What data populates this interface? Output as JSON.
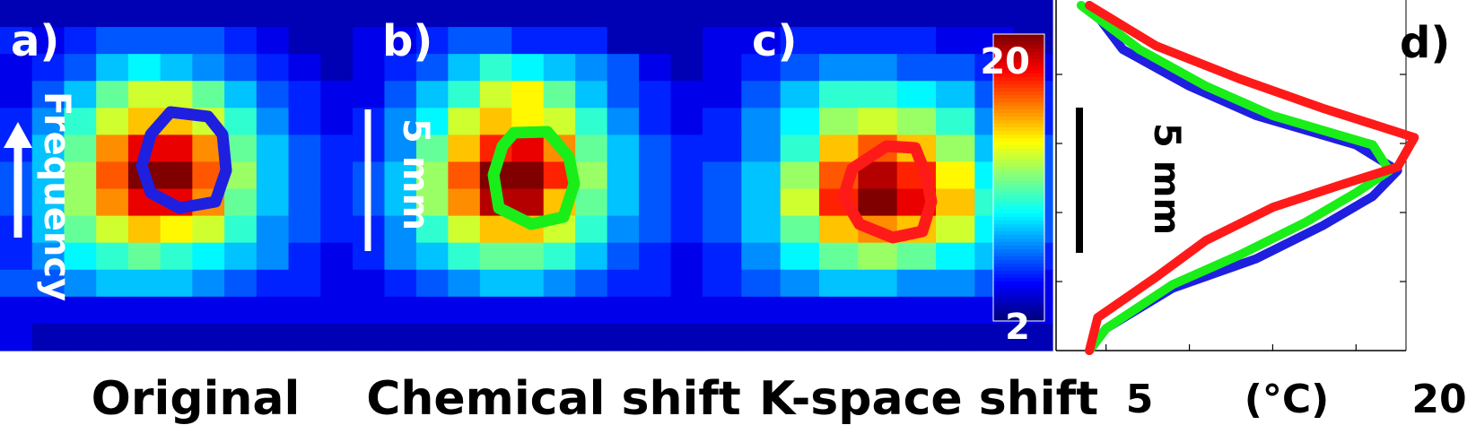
{
  "figure": {
    "panel_labels": [
      "a)",
      "b)",
      "c)",
      "d)"
    ],
    "panel_titles": [
      "Original",
      "Chemical shift",
      "K-space shift"
    ],
    "frequency_label": "Frequency",
    "scale_bar_label": "5 mm",
    "colors": {
      "original_outline": "#1f1fe0",
      "chemical_outline": "#19ee19",
      "kspace_outline": "#ff1a1a"
    }
  },
  "chart_data": [
    {
      "type": "heatmap",
      "panel": "a)",
      "title": "Original",
      "colormap": "jet",
      "clim": [
        2,
        21
      ],
      "values": [
        [
          3,
          3,
          3,
          3,
          3,
          3,
          3,
          3,
          3,
          3,
          3
        ],
        [
          5,
          4,
          5,
          6,
          6,
          6,
          6,
          5,
          4,
          3,
          3
        ],
        [
          4,
          5,
          6,
          8,
          9,
          8,
          7,
          6,
          5,
          4,
          3
        ],
        [
          4,
          6,
          8,
          11,
          13,
          13,
          11,
          8,
          6,
          5,
          4
        ],
        [
          5,
          7,
          10,
          13,
          15,
          15,
          13,
          10,
          7,
          5,
          4
        ],
        [
          5,
          8,
          11,
          16,
          19,
          19,
          16,
          11,
          8,
          6,
          5
        ],
        [
          6,
          8,
          12,
          17,
          21,
          21,
          17,
          12,
          8,
          6,
          5
        ],
        [
          6,
          8,
          12,
          16,
          19,
          19,
          16,
          11,
          8,
          6,
          5
        ],
        [
          5,
          8,
          11,
          13,
          15,
          14,
          13,
          10,
          7,
          6,
          5
        ],
        [
          5,
          7,
          9,
          10,
          11,
          10,
          9,
          8,
          7,
          5,
          4
        ],
        [
          6,
          6,
          7,
          8,
          8,
          8,
          7,
          6,
          5,
          5,
          4
        ],
        [
          4,
          4,
          4,
          4,
          4,
          4,
          4,
          4,
          4,
          4,
          4
        ],
        [
          4,
          3,
          3,
          3,
          3,
          3,
          3,
          3,
          3,
          3,
          3
        ]
      ]
    },
    {
      "type": "heatmap",
      "panel": "b)",
      "title": "Chemical shift",
      "colormap": "jet",
      "clim": [
        2,
        21
      ],
      "values": [
        [
          3,
          3,
          3,
          3,
          3,
          3,
          3,
          3,
          3,
          3,
          3
        ],
        [
          4,
          4,
          5,
          6,
          6,
          5,
          5,
          5,
          3,
          3,
          3
        ],
        [
          4,
          5,
          6,
          8,
          10,
          9,
          8,
          7,
          6,
          4,
          3
        ],
        [
          4,
          6,
          8,
          10,
          13,
          14,
          11,
          8,
          6,
          5,
          4
        ],
        [
          5,
          7,
          9,
          13,
          15,
          14,
          13,
          10,
          7,
          5,
          4
        ],
        [
          5,
          7,
          11,
          15,
          18,
          19,
          16,
          11,
          8,
          6,
          5
        ],
        [
          6,
          8,
          12,
          17,
          21,
          21,
          18,
          12,
          8,
          6,
          5
        ],
        [
          6,
          8,
          12,
          16,
          20,
          20,
          15,
          11,
          8,
          6,
          5
        ],
        [
          5,
          7,
          10,
          13,
          15,
          15,
          13,
          10,
          7,
          6,
          5
        ],
        [
          5,
          7,
          8,
          10,
          11,
          11,
          10,
          8,
          6,
          5,
          4
        ],
        [
          4,
          5,
          6,
          7,
          8,
          8,
          7,
          6,
          5,
          5,
          4
        ],
        [
          4,
          4,
          4,
          4,
          4,
          4,
          4,
          4,
          4,
          4,
          4
        ],
        [
          3,
          3,
          3,
          3,
          3,
          3,
          3,
          3,
          3,
          3,
          3
        ]
      ]
    },
    {
      "type": "heatmap",
      "panel": "c)",
      "title": "K-space shift",
      "colormap": "jet",
      "colorbar": {
        "ticks": [
          20,
          2
        ],
        "range": [
          2,
          21
        ]
      },
      "clim": [
        2,
        21
      ],
      "values": [
        [
          3,
          3,
          3,
          3,
          3,
          3,
          3,
          3,
          3
        ],
        [
          4,
          4,
          5,
          5,
          5,
          5,
          4,
          4,
          3
        ],
        [
          4,
          5,
          6,
          7,
          7,
          6,
          6,
          5,
          4
        ],
        [
          4,
          6,
          8,
          10,
          10,
          9,
          8,
          6,
          5
        ],
        [
          5,
          7,
          9,
          12,
          13,
          12,
          10,
          7,
          5
        ],
        [
          5,
          7,
          10,
          15,
          17,
          15,
          12,
          8,
          6
        ],
        [
          6,
          8,
          12,
          17,
          20,
          18,
          14,
          9,
          6
        ],
        [
          6,
          8,
          13,
          18,
          21,
          19,
          15,
          10,
          6
        ],
        [
          6,
          8,
          11,
          15,
          16,
          15,
          13,
          9,
          6
        ],
        [
          5,
          7,
          9,
          11,
          12,
          11,
          9,
          8,
          5
        ],
        [
          5,
          6,
          7,
          8,
          8,
          7,
          7,
          6,
          4
        ],
        [
          4,
          4,
          4,
          4,
          4,
          4,
          4,
          4,
          4
        ],
        [
          3,
          3,
          3,
          3,
          3,
          3,
          3,
          3,
          3
        ]
      ]
    },
    {
      "type": "line",
      "panel": "d)",
      "xlabel": "(°C)",
      "ylabel": "5 mm",
      "xlim": [
        2,
        23
      ],
      "xticks": [
        5,
        20
      ],
      "grid": false,
      "series": [
        {
          "color": "#1f1fe0",
          "points": [
            [
              4,
              0
            ],
            [
              5,
              0.6
            ],
            [
              9,
              1.7
            ],
            [
              14,
              2.5
            ],
            [
              18,
              3.4
            ],
            [
              21,
              4.2
            ],
            [
              22.5,
              4.9
            ],
            [
              20,
              5.6
            ],
            [
              14,
              6.4
            ],
            [
              10,
              7.2
            ],
            [
              6,
              8.2
            ],
            [
              4,
              9.4
            ]
          ]
        },
        {
          "color": "#19ee19",
          "points": [
            [
              4,
              0
            ],
            [
              5,
              0.6
            ],
            [
              9,
              1.8
            ],
            [
              13,
              2.6
            ],
            [
              17,
              3.5
            ],
            [
              20,
              4.3
            ],
            [
              22,
              4.9
            ],
            [
              21,
              5.6
            ],
            [
              15,
              6.4
            ],
            [
              11,
              7.2
            ],
            [
              7,
              8.2
            ],
            [
              3.5,
              9.4
            ]
          ]
        },
        {
          "color": "#ff1a1a",
          "points": [
            [
              4,
              0
            ],
            [
              4.5,
              0.9
            ],
            [
              8,
              2.0
            ],
            [
              11,
              3.0
            ],
            [
              15,
              3.9
            ],
            [
              19,
              4.5
            ],
            [
              22.5,
              5.0
            ],
            [
              23.5,
              5.8
            ],
            [
              18,
              6.6
            ],
            [
              13,
              7.4
            ],
            [
              8,
              8.3
            ],
            [
              4,
              9.4
            ]
          ]
        }
      ]
    }
  ]
}
